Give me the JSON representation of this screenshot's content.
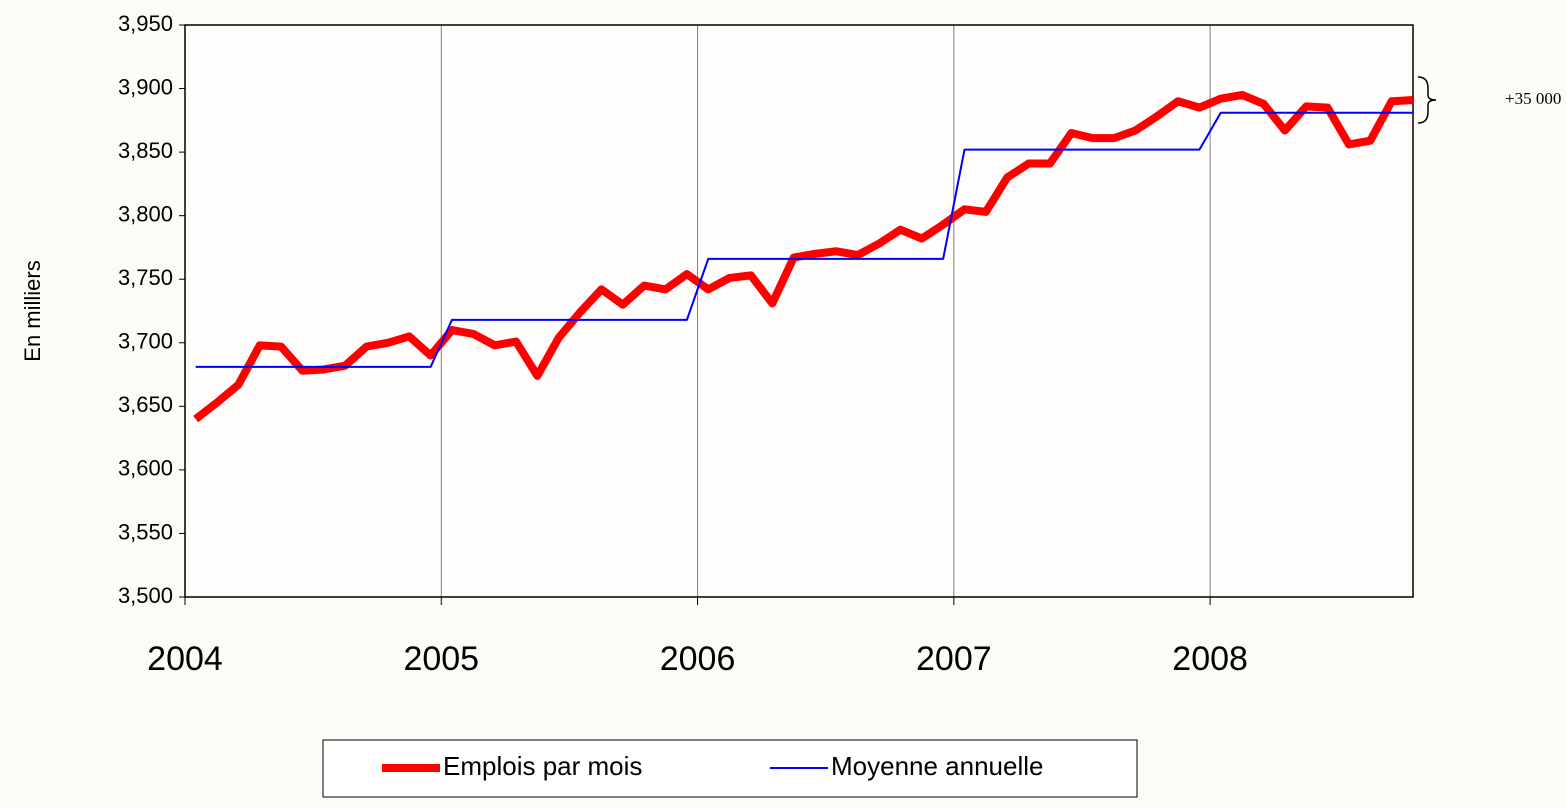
{
  "chart_data": {
    "type": "line",
    "y_label": "En milliers",
    "annotation": "+35 000",
    "categories": [
      "2004",
      null,
      null,
      null,
      null,
      null,
      null,
      null,
      null,
      null,
      null,
      null,
      "2005",
      null,
      null,
      null,
      null,
      null,
      null,
      null,
      null,
      null,
      null,
      null,
      "2006",
      null,
      null,
      null,
      null,
      null,
      null,
      null,
      null,
      null,
      null,
      null,
      "2007",
      null,
      null,
      null,
      null,
      null,
      null,
      null,
      null,
      null,
      null,
      null,
      "2008",
      null,
      null,
      null,
      null,
      null,
      null,
      null,
      null,
      null
    ],
    "series": [
      {
        "name": "Emplois par mois",
        "color": "#ff0000",
        "values": [
          3640,
          3653,
          3667,
          3698,
          3697,
          3678,
          3679,
          3682,
          3697,
          3700,
          3705,
          3690,
          3710,
          3707,
          3698,
          3701,
          3674,
          3704,
          3724,
          3742,
          3730,
          3745,
          3742,
          3754,
          3742,
          3751,
          3753,
          3731,
          3767,
          3770,
          3772,
          3769,
          3778,
          3789,
          3782,
          3793,
          3805,
          3803,
          3830,
          3841,
          3841,
          3865,
          3861,
          3861,
          3867,
          3878,
          3890,
          3885,
          3892,
          3895,
          3888,
          3867,
          3886,
          3885,
          3856,
          3859,
          3890,
          3891
        ]
      },
      {
        "name": "Moyenne annuelle",
        "color": "#0000ff",
        "values": [
          3681,
          3681,
          3681,
          3681,
          3681,
          3681,
          3681,
          3681,
          3681,
          3681,
          3681,
          3681,
          3718,
          3718,
          3718,
          3718,
          3718,
          3718,
          3718,
          3718,
          3718,
          3718,
          3718,
          3718,
          3766,
          3766,
          3766,
          3766,
          3766,
          3766,
          3766,
          3766,
          3766,
          3766,
          3766,
          3766,
          3852,
          3852,
          3852,
          3852,
          3852,
          3852,
          3852,
          3852,
          3852,
          3852,
          3852,
          3852,
          3881,
          3881,
          3881,
          3881,
          3881,
          3881,
          3881,
          3881,
          3881,
          3881
        ]
      }
    ],
    "ylim": [
      3500,
      3950
    ],
    "yticks": [
      {
        "value": 3500,
        "label": "3,500"
      },
      {
        "value": 3550,
        "label": "3,550"
      },
      {
        "value": 3600,
        "label": "3,600"
      },
      {
        "value": 3650,
        "label": "3,650"
      },
      {
        "value": 3700,
        "label": "3,700"
      },
      {
        "value": 3750,
        "label": "3,750"
      },
      {
        "value": 3800,
        "label": "3,800"
      },
      {
        "value": 3850,
        "label": "3,850"
      },
      {
        "value": 3900,
        "label": "3,900"
      },
      {
        "value": 3950,
        "label": "3,950"
      }
    ],
    "grid": true,
    "legend": "bottom"
  }
}
